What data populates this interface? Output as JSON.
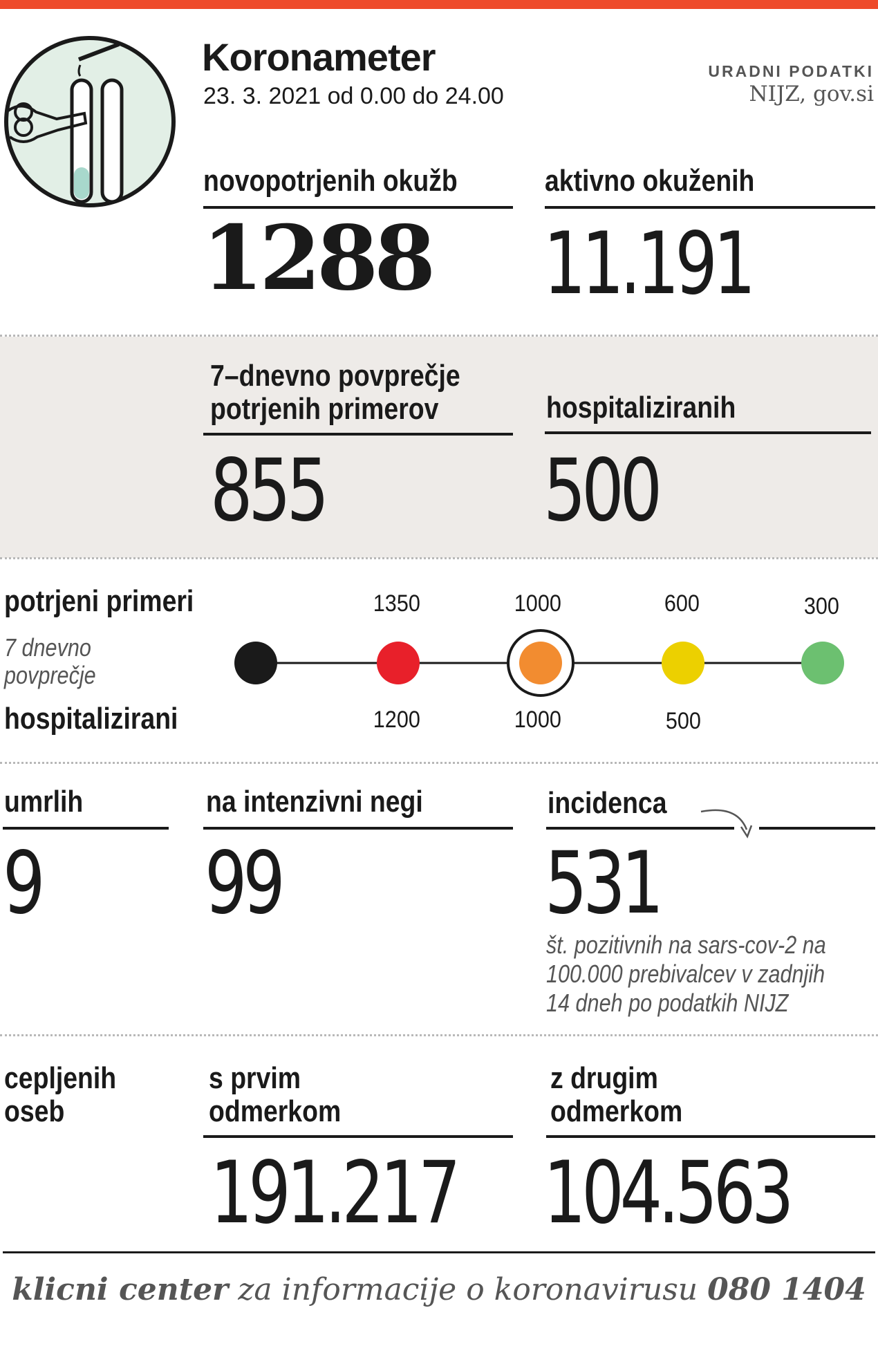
{
  "header": {
    "title": "Koronameter",
    "date": "23. 3. 2021 od 0.00 do 24.00",
    "source_label": "URADNI PODATKI",
    "source": "NIJZ, gov.si"
  },
  "stats": {
    "new_infections": {
      "label": "novopotrjenih okužb",
      "value": "1288"
    },
    "active": {
      "label": "aktivno okuženih",
      "value": "11.191"
    },
    "avg7_line1": "7–dnevno povprečje",
    "avg7_line2": "potrjenih primerov",
    "avg7_value": "855",
    "hospitalized": {
      "label": "hospitaliziranih",
      "value": "500"
    },
    "deaths": {
      "label": "umrlih",
      "value": "9"
    },
    "icu": {
      "label": "na intenzivni negi",
      "value": "99"
    },
    "incidence": {
      "label": "incidenca",
      "value": "531",
      "note_line1": "št. pozitivnih na sars-cov-2 na",
      "note_line2": "100.000 prebivalcev v zadnjih",
      "note_line3": "14 dneh po podatkih NIJZ"
    },
    "vacc_line1": "cepljenih",
    "vacc_line2": "oseb",
    "first_line1": "s prvim",
    "first_line2": "odmerkom",
    "first_value": "191.217",
    "second_line1": "z drugim",
    "second_line2": "odmerkom",
    "second_value": "104.563"
  },
  "scale": {
    "confirmed_label": "potrjeni primeri",
    "avg_line1": "7 dnevno",
    "avg_line2": "povprečje",
    "hosp_label": "hospitalizirani",
    "confirmed_thresholds": [
      "1350",
      "1000",
      "600",
      "300"
    ],
    "hosp_thresholds": [
      "1200",
      "1000",
      "500"
    ],
    "colors": [
      "#1a1a1a",
      "#e8202a",
      "#f28c30",
      "#ecd000",
      "#6cc070"
    ],
    "active_level": 2
  },
  "footer": {
    "bold1": "klicni center",
    "mid": " za informacije o koronavirusu ",
    "bold2": "080 1404"
  }
}
